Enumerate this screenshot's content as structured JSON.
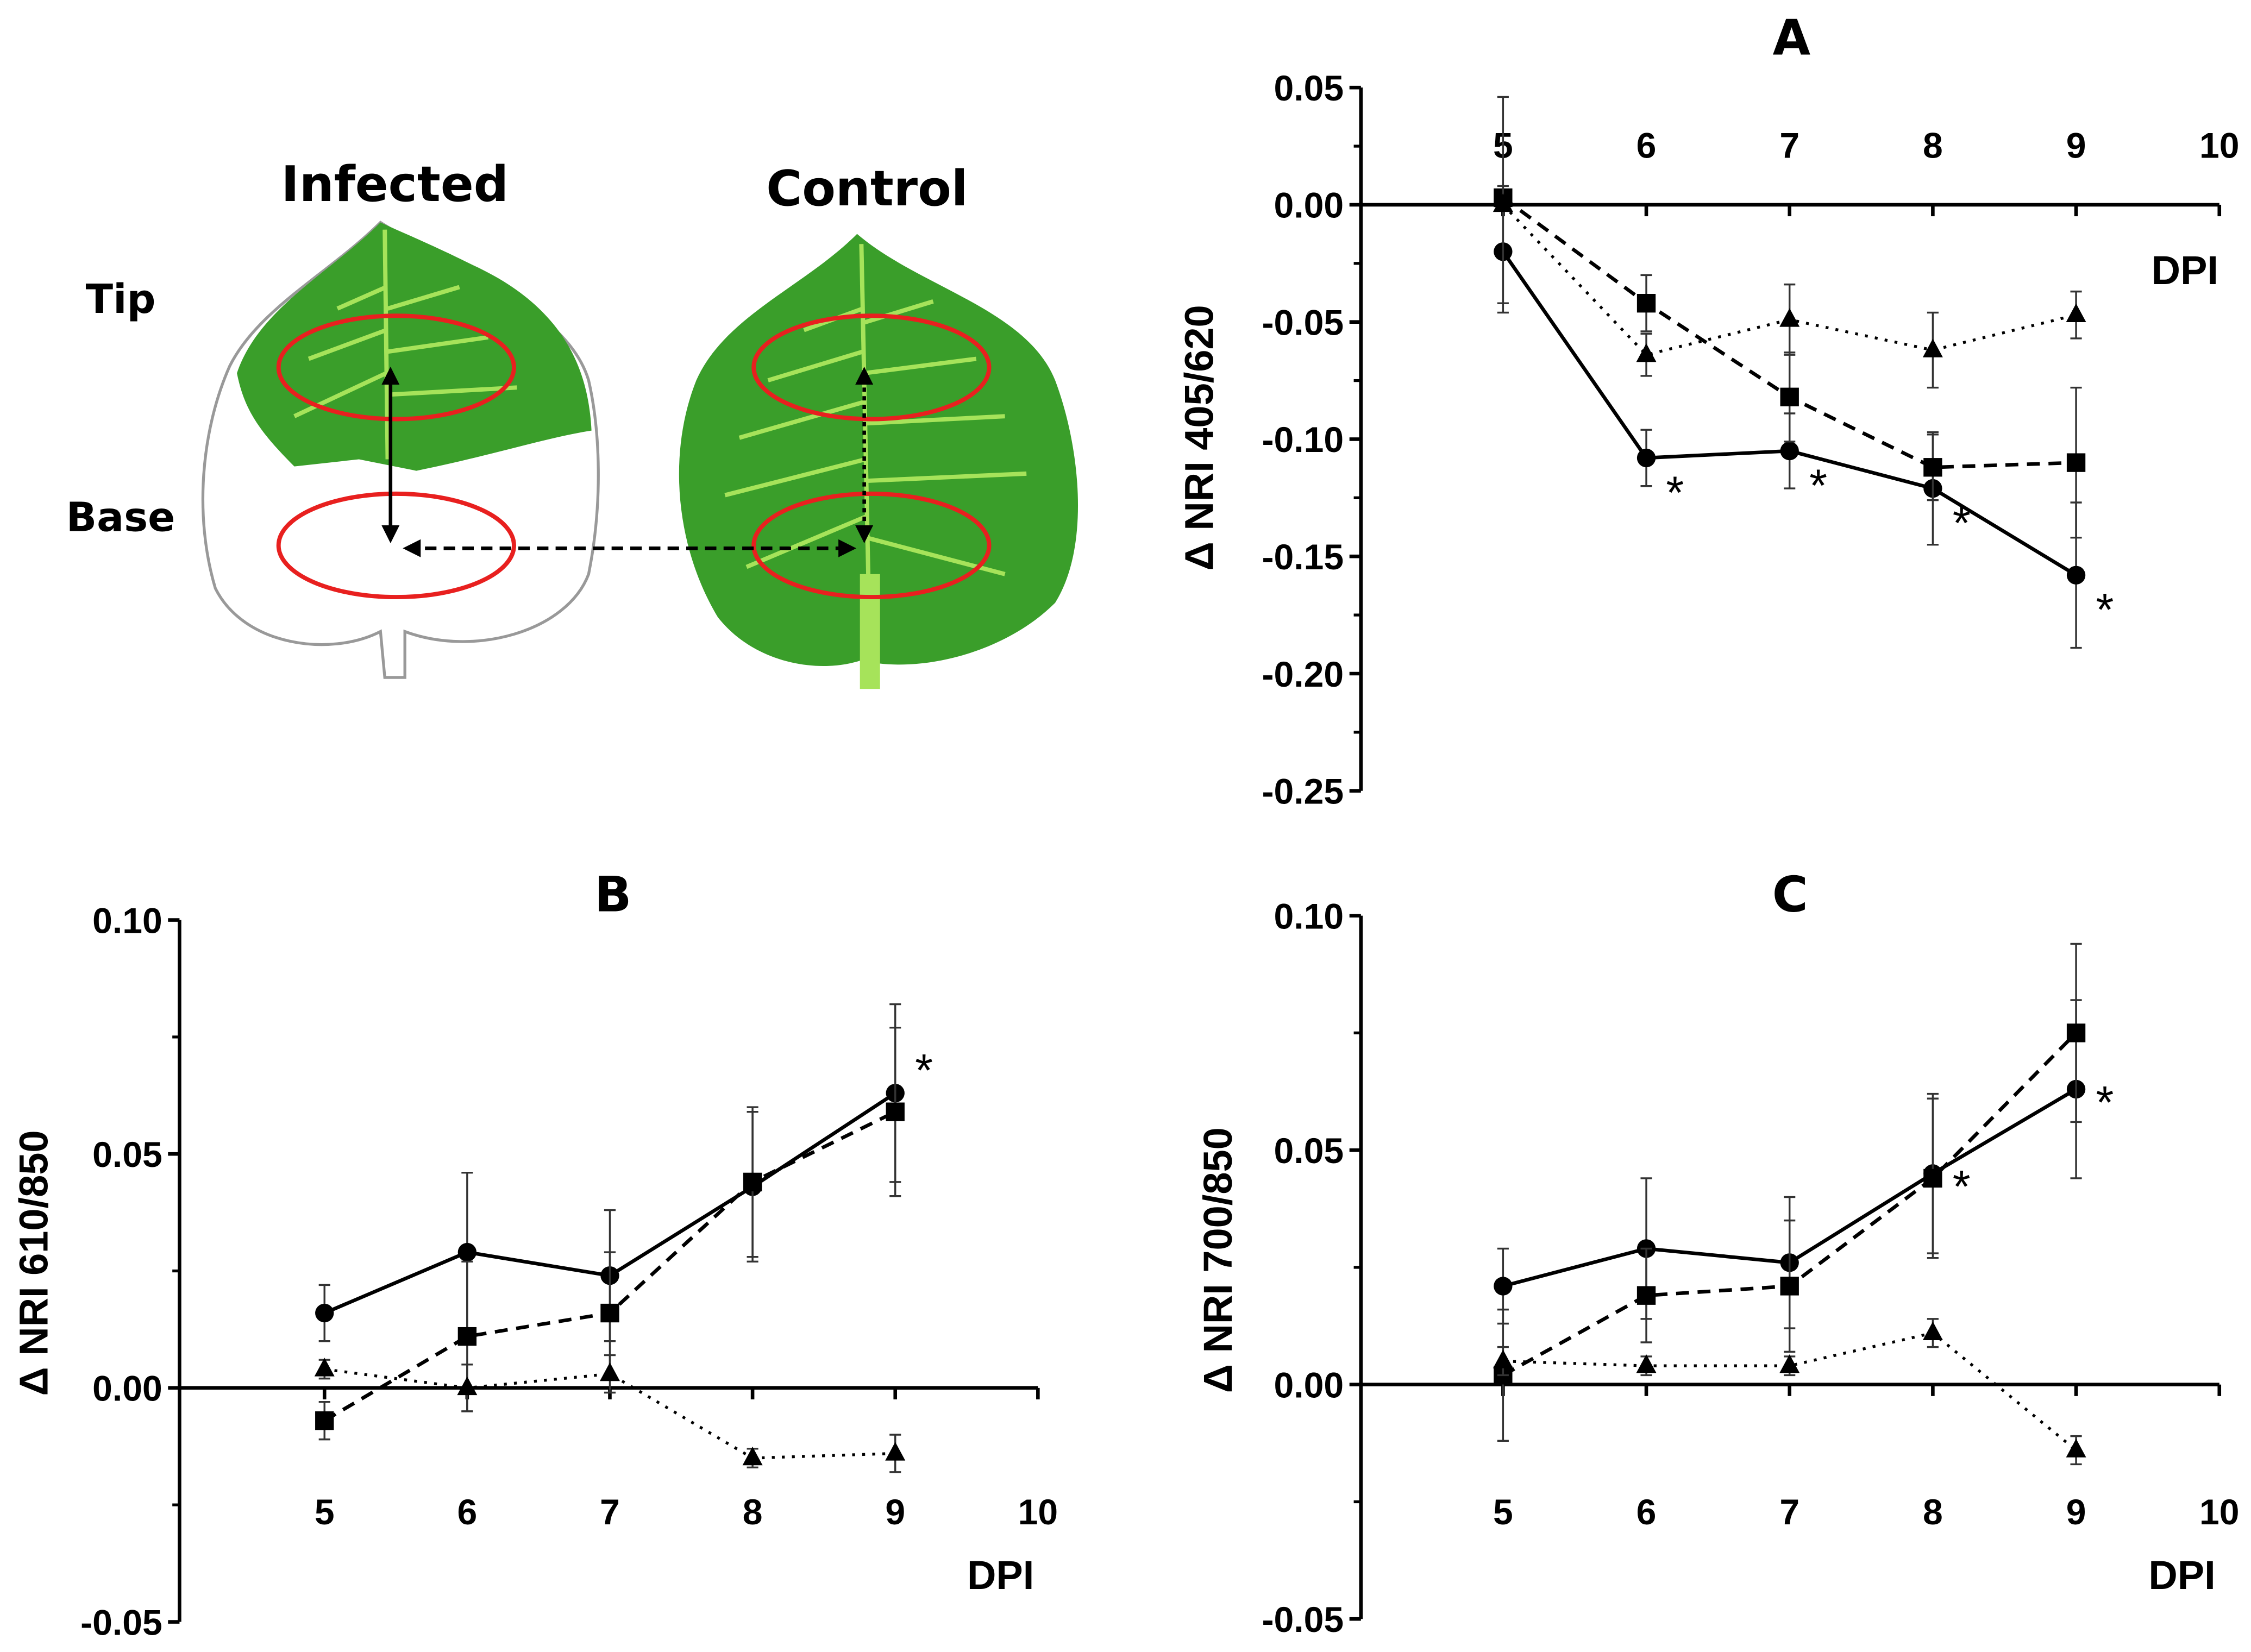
{
  "diagram": {
    "infected_label": "Infected",
    "control_label": "Control",
    "tip_label": "Tip",
    "base_label": "Base",
    "colors": {
      "leaf": "#3a9e2a",
      "vein": "#a6e35a",
      "ring": "#e8201f"
    }
  },
  "chart_data": [
    {
      "type": "line",
      "title": "A",
      "xlabel": "DPI",
      "ylabel": "Δ NRI 405/620",
      "x": [
        5,
        6,
        7,
        8,
        9
      ],
      "xlim": [
        4,
        10
      ],
      "xticks": [
        "5",
        "6",
        "7",
        "8",
        "9",
        "10"
      ],
      "ylim": [
        -0.25,
        0.05
      ],
      "yticks": [
        "0.05",
        "0.00",
        "-0.05",
        "-0.10",
        "-0.15",
        "-0.20",
        "-0.25"
      ],
      "series": [
        {
          "name": "circle-solid",
          "marker": "circle",
          "line": "solid",
          "values": [
            -0.02,
            -0.108,
            -0.105,
            -0.121,
            -0.158
          ],
          "errors": [
            0.022,
            0.012,
            0.016,
            0.024,
            0.031
          ]
        },
        {
          "name": "square-dashed",
          "marker": "square",
          "line": "dashed",
          "values": [
            0.003,
            -0.042,
            -0.082,
            -0.112,
            -0.11
          ],
          "errors": [
            0.005,
            0.012,
            0.019,
            0.014,
            0.032
          ]
        },
        {
          "name": "triangle-dotted",
          "marker": "triangle",
          "line": "dotted",
          "values": [
            0.0,
            -0.064,
            -0.049,
            -0.062,
            -0.047
          ],
          "errors": [
            0.046,
            0.009,
            0.015,
            0.016,
            0.01
          ]
        }
      ],
      "significance": [
        {
          "x": 6,
          "y": -0.108,
          "label": "*"
        },
        {
          "x": 7,
          "y": -0.105,
          "label": "*"
        },
        {
          "x": 8,
          "y": -0.121,
          "label": "*"
        },
        {
          "x": 9,
          "y": -0.158,
          "label": "*"
        }
      ]
    },
    {
      "type": "line",
      "title": "B",
      "xlabel": "DPI",
      "ylabel": "Δ NRI 610/850",
      "x": [
        5,
        6,
        7,
        8,
        9
      ],
      "xlim": [
        4,
        10
      ],
      "xticks": [
        "5",
        "6",
        "7",
        "8",
        "9",
        "10"
      ],
      "ylim": [
        -0.05,
        0.1
      ],
      "yticks": [
        "0.10",
        "0.05",
        "0.00",
        "-0.05"
      ],
      "series": [
        {
          "name": "circle-solid",
          "marker": "circle",
          "line": "solid",
          "values": [
            0.016,
            0.029,
            0.024,
            0.043,
            0.063
          ],
          "errors": [
            0.006,
            0.017,
            0.014,
            0.016,
            0.019
          ]
        },
        {
          "name": "square-dashed",
          "marker": "square",
          "line": "dashed",
          "values": [
            -0.007,
            0.011,
            0.016,
            0.044,
            0.059
          ],
          "errors": [
            0.004,
            0.016,
            0.013,
            0.016,
            0.018
          ]
        },
        {
          "name": "triangle-dotted",
          "marker": "triangle",
          "line": "dotted",
          "values": [
            0.004,
            0.0,
            0.003,
            -0.015,
            -0.014
          ],
          "errors": [
            0.002,
            0.005,
            0.004,
            0.002,
            0.004
          ]
        }
      ],
      "significance": [
        {
          "x": 9,
          "y": 0.063,
          "label": "*"
        }
      ]
    },
    {
      "type": "line",
      "title": "C",
      "xlabel": "DPI",
      "ylabel": "Δ NRI 700/850",
      "x": [
        5,
        6,
        7,
        8,
        9
      ],
      "xlim": [
        4,
        10
      ],
      "xticks": [
        "5",
        "6",
        "7",
        "8",
        "9",
        "10"
      ],
      "ylim": [
        -0.05,
        0.1
      ],
      "yticks": [
        "0.10",
        "0.05",
        "0.00",
        "-0.05"
      ],
      "series": [
        {
          "name": "circle-solid",
          "marker": "circle",
          "line": "solid",
          "values": [
            0.021,
            0.029,
            0.026,
            0.045,
            0.063
          ],
          "errors": [
            0.008,
            0.015,
            0.014,
            0.017,
            0.019
          ]
        },
        {
          "name": "square-dashed",
          "marker": "square",
          "line": "dashed",
          "values": [
            0.002,
            0.019,
            0.021,
            0.044,
            0.075
          ],
          "errors": [
            0.014,
            0.01,
            0.014,
            0.017,
            0.019
          ]
        },
        {
          "name": "triangle-dotted",
          "marker": "triangle",
          "line": "dotted",
          "values": [
            0.005,
            0.004,
            0.004,
            0.011,
            -0.014
          ],
          "errors": [
            0.003,
            0.002,
            0.002,
            0.003,
            0.003
          ]
        }
      ],
      "significance": [
        {
          "x": 8,
          "y": 0.045,
          "label": "*"
        },
        {
          "x": 9,
          "y": 0.063,
          "label": "*"
        }
      ]
    }
  ]
}
